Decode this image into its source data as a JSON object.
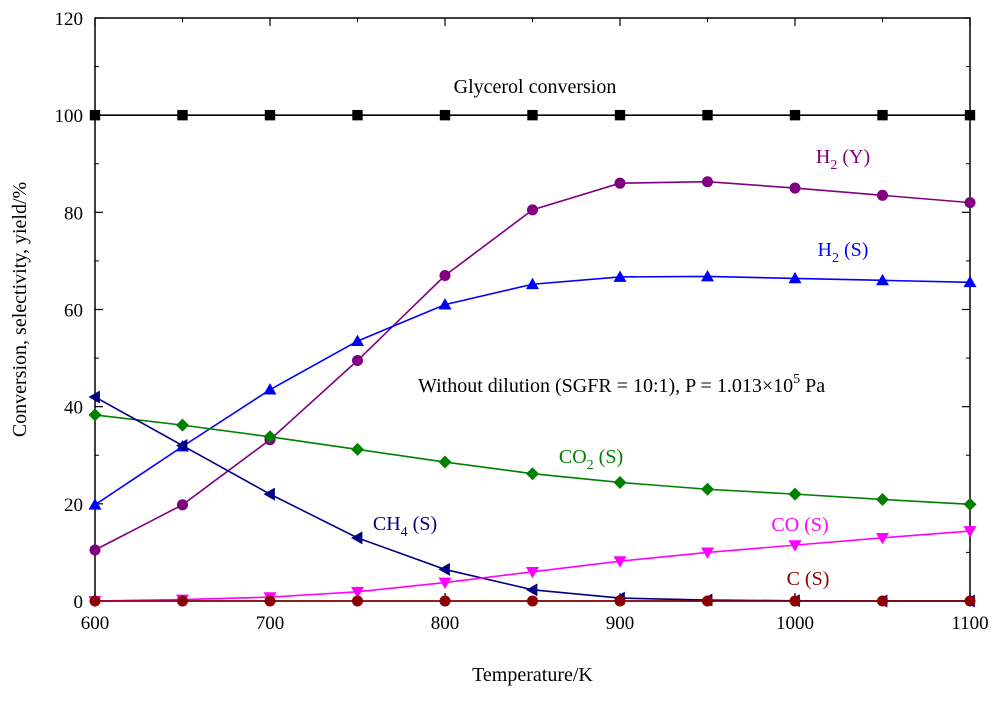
{
  "chart_data": {
    "type": "line",
    "title": "",
    "xlabel": "Temperature/K",
    "ylabel": "Conversion, selectivity, yield/%",
    "xlim": [
      600,
      1100
    ],
    "ylim": [
      0,
      120
    ],
    "x": [
      600,
      650,
      700,
      750,
      800,
      850,
      900,
      950,
      1000,
      1050,
      1100
    ],
    "x_ticks": [
      600,
      700,
      800,
      900,
      1000,
      1100
    ],
    "y_ticks": [
      0,
      20,
      40,
      60,
      80,
      100,
      120
    ],
    "grid": false,
    "condition_text": {
      "main": "Without dilution (SGFR = 10:1), P = 1.013×10",
      "sup": "5",
      "tail": " Pa"
    },
    "series": [
      {
        "name": "Glycerol conversion",
        "label_base": "Glycerol conversion",
        "label_sub": "",
        "label_tail": "",
        "color": "#000000",
        "marker": "square",
        "values": [
          100,
          100,
          100,
          100,
          100,
          100,
          100,
          100,
          100,
          100,
          100
        ]
      },
      {
        "name": "H2 (Y)",
        "label_base": "H",
        "label_sub": "2",
        "label_tail": " (Y)",
        "color": "#800080",
        "marker": "circle",
        "values": [
          10.5,
          19.8,
          33.2,
          49.5,
          67,
          80.5,
          86,
          86.3,
          85,
          83.5,
          82
        ]
      },
      {
        "name": "H2 (S)",
        "label_base": "H",
        "label_sub": "2",
        "label_tail": " (S)",
        "color": "#0000ff",
        "marker": "triangle-up",
        "values": [
          19.8,
          31.8,
          43.5,
          53.5,
          61,
          65.2,
          66.7,
          66.8,
          66.4,
          66,
          65.6
        ]
      },
      {
        "name": "CO2 (S)",
        "label_base": "CO",
        "label_sub": "2",
        "label_tail": " (S)",
        "color": "#008000",
        "marker": "diamond",
        "values": [
          38.3,
          36.2,
          33.8,
          31.2,
          28.6,
          26.2,
          24.4,
          23,
          22,
          20.9,
          19.9
        ]
      },
      {
        "name": "CH4 (S)",
        "label_base": "CH",
        "label_sub": "4",
        "label_tail": " (S)",
        "color": "#000080",
        "marker": "triangle-left",
        "values": [
          42,
          32,
          22,
          13,
          6.5,
          2.3,
          0.6,
          0.2,
          0.05,
          0,
          0
        ]
      },
      {
        "name": "CO (S)",
        "label_base": "CO (S)",
        "label_sub": "",
        "label_tail": "",
        "color": "#ff00ff",
        "marker": "triangle-down",
        "values": [
          0,
          0.3,
          0.8,
          1.9,
          3.8,
          6,
          8.2,
          10,
          11.5,
          13,
          14.4
        ]
      },
      {
        "name": "C (S)",
        "label_base": "C (S)",
        "label_sub": "",
        "label_tail": "",
        "color": "#8b0000",
        "marker": "circle",
        "values": [
          0,
          0,
          0,
          0,
          0,
          0,
          0,
          0,
          0,
          0,
          0
        ]
      }
    ]
  }
}
